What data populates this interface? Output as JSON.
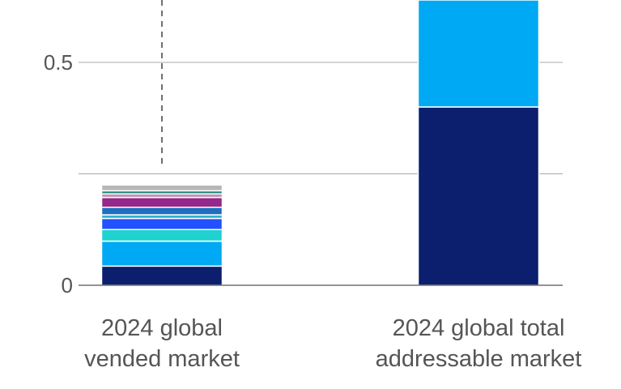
{
  "chart_data": {
    "type": "bar",
    "stacked": true,
    "categories": [
      "2024 global vended market",
      "2024 global total addressable market"
    ],
    "category_label_lines": [
      [
        "2024 global",
        "vended market"
      ],
      [
        "2024 global total",
        "addressable market"
      ]
    ],
    "y_ticks": [
      {
        "value": 0,
        "label": "0"
      },
      {
        "value": 0.25,
        "label": ""
      },
      {
        "value": 0.5,
        "label": "0.5"
      }
    ],
    "ylim": [
      0,
      0.64
    ],
    "grid": true,
    "reference_line": {
      "category_index": 0,
      "from": 0.265,
      "to": 0.64,
      "style": "dashed"
    },
    "series": [
      {
        "color": "#0b1f6e",
        "values": [
          0.043,
          0.4
        ]
      },
      {
        "color": "#00a9f4",
        "values": [
          0.056,
          0.24
        ]
      },
      {
        "color": "#1fd1cf",
        "values": [
          0.026,
          0
        ]
      },
      {
        "color": "#2251ff",
        "values": [
          0.025,
          0
        ]
      },
      {
        "color": "#30b0c7",
        "values": [
          0.008,
          0
        ]
      },
      {
        "color": "#1f6fbf",
        "values": [
          0.017,
          0
        ]
      },
      {
        "color": "#94288b",
        "values": [
          0.022,
          0
        ]
      },
      {
        "color": "#c28fb0",
        "values": [
          0.008,
          0
        ]
      },
      {
        "color": "#1f8a7d",
        "values": [
          0.007,
          0
        ]
      },
      {
        "color": "#b7b7b7",
        "values": [
          0.013,
          0
        ]
      }
    ]
  }
}
